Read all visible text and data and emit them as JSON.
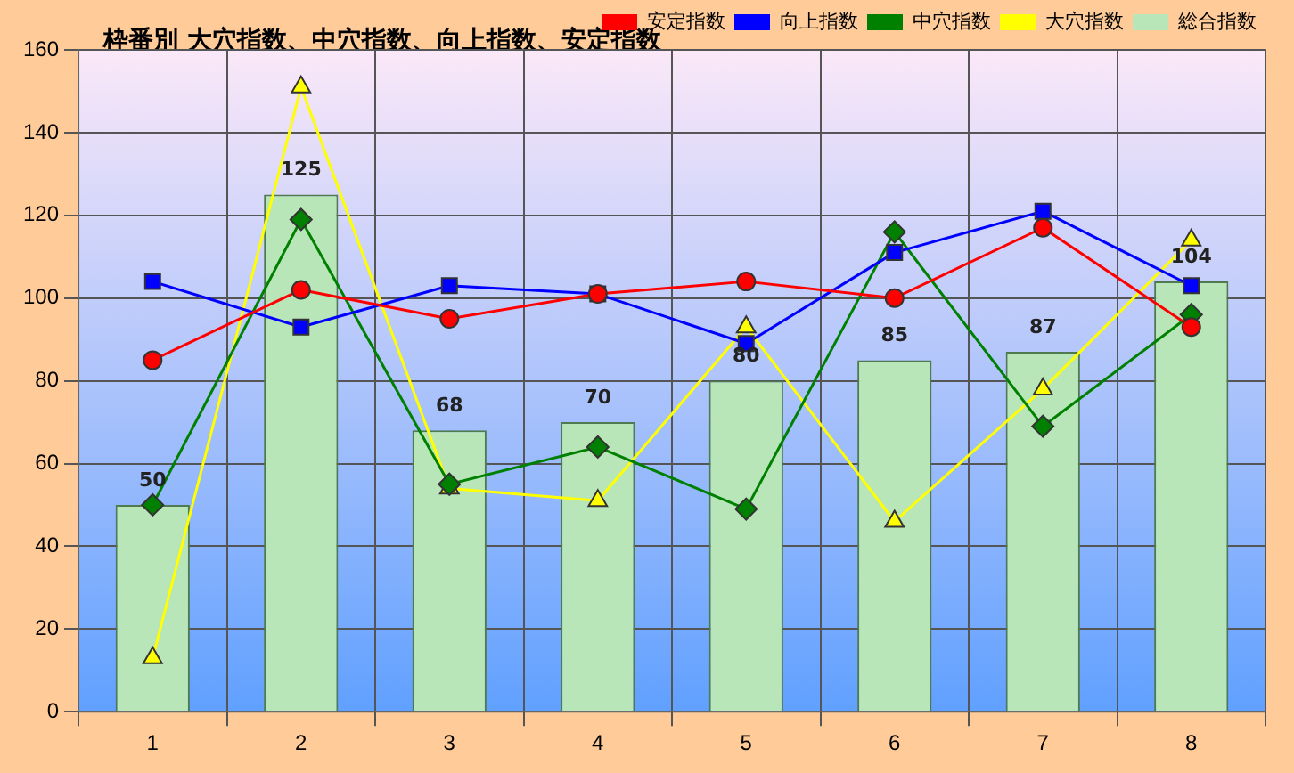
{
  "chart_data": {
    "type": "bar",
    "title": "枠番別  大穴指数、中穴指数、向上指数、安定指数",
    "categories": [
      "1",
      "2",
      "3",
      "4",
      "5",
      "6",
      "7",
      "8"
    ],
    "series": [
      {
        "name": "総合指数",
        "type": "bar",
        "color": "#b8e6b8",
        "values": [
          50,
          125,
          68,
          70,
          80,
          85,
          87,
          104
        ],
        "value_labels": [
          "50",
          "125",
          "68",
          "70",
          "80",
          "85",
          "87",
          "104"
        ]
      },
      {
        "name": "大穴指数",
        "type": "line",
        "color": "#ffff00",
        "marker": "triangle",
        "values": [
          13,
          151,
          54,
          51,
          93,
          46,
          78,
          114
        ]
      },
      {
        "name": "中穴指数",
        "type": "line",
        "color": "#008000",
        "marker": "diamond",
        "values": [
          50,
          119,
          55,
          64,
          49,
          116,
          69,
          96
        ]
      },
      {
        "name": "向上指数",
        "type": "line",
        "color": "#0000ff",
        "marker": "square",
        "values": [
          104,
          93,
          103,
          101,
          89,
          111,
          121,
          103
        ]
      },
      {
        "name": "安定指数",
        "type": "line",
        "color": "#ff0000",
        "marker": "circle",
        "values": [
          85,
          102,
          95,
          101,
          104,
          100,
          117,
          93
        ]
      }
    ],
    "ylim": [
      0,
      160
    ],
    "yticks": [
      0,
      20,
      40,
      60,
      80,
      100,
      120,
      140,
      160
    ],
    "grid": true,
    "legend": "top right"
  }
}
